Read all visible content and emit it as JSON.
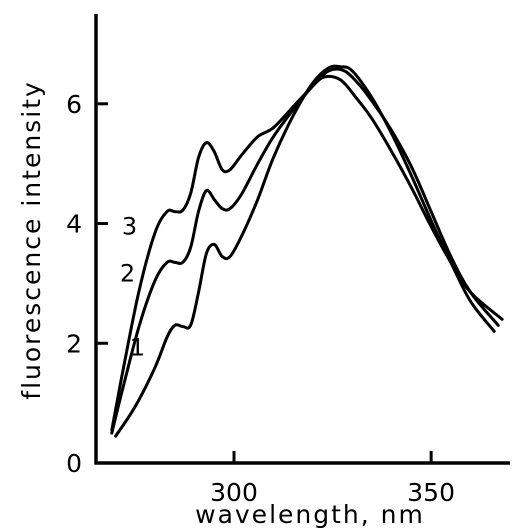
{
  "chart_data": {
    "type": "line",
    "title": "",
    "xlabel": "wavelength, nm",
    "ylabel": "fluorescence intensity",
    "xlim": [
      265,
      370
    ],
    "ylim": [
      0,
      7.5
    ],
    "xticks": [
      300,
      350
    ],
    "yticks": [
      0,
      2,
      4,
      6
    ],
    "xtick_labels": [
      "300",
      "350"
    ],
    "ytick_labels": [
      "0",
      "2",
      "4",
      "6"
    ],
    "grid": false,
    "legend": "none",
    "series": [
      {
        "name": "1",
        "x": [
          270,
          275,
          280,
          283,
          285,
          287,
          289,
          291,
          293,
          295,
          297,
          299,
          302,
          306,
          310,
          315,
          320,
          324,
          327,
          330,
          335,
          340,
          345,
          350,
          355,
          360,
          366
        ],
        "y": [
          0.45,
          0.95,
          1.6,
          2.1,
          2.3,
          2.28,
          2.3,
          2.85,
          3.5,
          3.65,
          3.45,
          3.45,
          3.8,
          4.4,
          5.1,
          5.8,
          6.35,
          6.6,
          6.62,
          6.55,
          6.1,
          5.5,
          4.8,
          4.05,
          3.35,
          2.7,
          2.2
        ]
      },
      {
        "name": "2",
        "x": [
          269,
          272,
          276,
          280,
          283,
          285,
          287,
          289,
          291,
          293,
          295,
          297,
          299,
          302,
          306,
          310,
          315,
          320,
          324,
          328,
          332,
          336,
          340,
          345,
          350,
          355,
          360,
          367
        ],
        "y": [
          0.5,
          1.3,
          2.3,
          3.05,
          3.35,
          3.35,
          3.35,
          3.6,
          4.2,
          4.55,
          4.4,
          4.25,
          4.25,
          4.5,
          5.0,
          5.45,
          5.9,
          6.3,
          6.55,
          6.55,
          6.3,
          5.95,
          5.55,
          4.95,
          4.2,
          3.45,
          2.85,
          2.3
        ]
      },
      {
        "name": "3",
        "x": [
          269,
          272,
          276,
          280,
          283,
          285,
          287,
          289,
          291,
          293,
          295,
          297,
          299,
          302,
          306,
          310,
          315,
          320,
          323,
          327,
          331,
          335,
          340,
          345,
          350,
          355,
          360,
          368
        ],
        "y": [
          0.55,
          1.6,
          2.9,
          3.85,
          4.2,
          4.2,
          4.22,
          4.5,
          5.1,
          5.35,
          5.2,
          4.9,
          4.9,
          5.15,
          5.45,
          5.6,
          5.95,
          6.3,
          6.45,
          6.4,
          6.1,
          5.75,
          5.2,
          4.6,
          3.95,
          3.35,
          2.85,
          2.4
        ]
      }
    ]
  }
}
